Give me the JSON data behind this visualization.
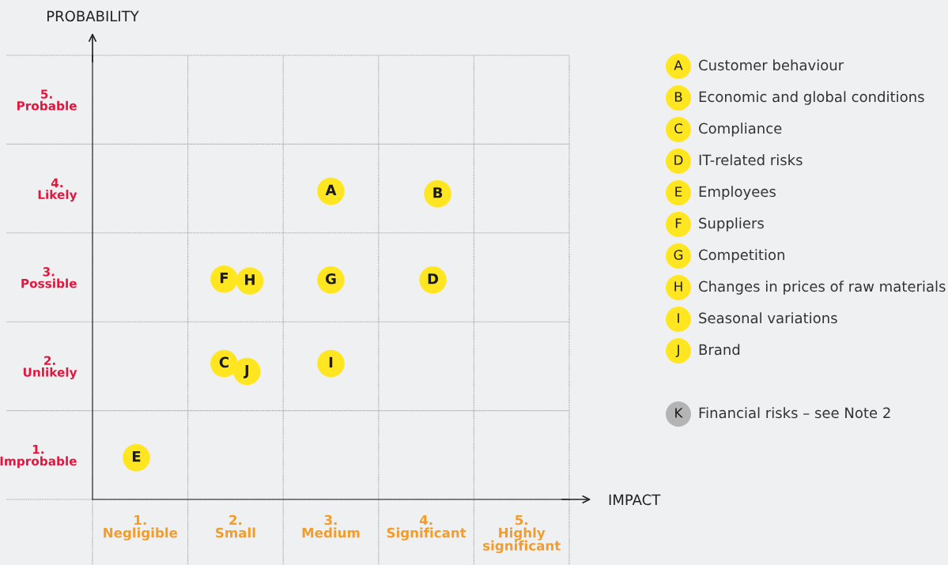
{
  "chart_data": {
    "type": "scatter",
    "xlabel": "IMPACT",
    "ylabel": "PROBABILITY",
    "xlim": [
      0,
      5
    ],
    "ylim": [
      0,
      5
    ],
    "xticks": [
      {
        "value": 0,
        "label": null
      },
      {
        "value": 0.5,
        "label": "1.\nNegligible"
      },
      {
        "value": 1,
        "label": null
      },
      {
        "value": 1.5,
        "label": "2.\nSmall"
      },
      {
        "value": 2,
        "label": null
      },
      {
        "value": 2.5,
        "label": "3.\nMedium"
      },
      {
        "value": 3,
        "label": null
      },
      {
        "value": 3.5,
        "label": "4.\nSignificant"
      },
      {
        "value": 4,
        "label": null
      },
      {
        "value": 4.5,
        "label": "5.\nHighly\nsignificant"
      },
      {
        "value": 5,
        "label": null
      }
    ],
    "yticks": [
      {
        "value": 0,
        "label": null
      },
      {
        "value": 0.5,
        "label": "1.\nImprobable"
      },
      {
        "value": 1,
        "label": null
      },
      {
        "value": 1.5,
        "label": "2.\nUnlikely"
      },
      {
        "value": 2,
        "label": null
      },
      {
        "value": 2.5,
        "label": "3.\nPossible"
      },
      {
        "value": 3,
        "label": null
      },
      {
        "value": 3.5,
        "label": "4.\nLikely"
      },
      {
        "value": 4,
        "label": null
      },
      {
        "value": 4.5,
        "label": "5.\nProbable"
      },
      {
        "value": 5,
        "label": null
      }
    ],
    "grid": true,
    "legend": "right",
    "marker": "circle",
    "series": [
      {
        "name": "Customer behaviour",
        "color": "#ffe620",
        "x": [
          2.5
        ],
        "values": [
          3.47
        ],
        "value_labels": [
          "A"
        ]
      },
      {
        "name": "Economic and global conditions",
        "color": "#ffe620",
        "x": [
          3.62
        ],
        "values": [
          3.44
        ],
        "value_labels": [
          "B"
        ]
      },
      {
        "name": "Compliance",
        "color": "#ffe620",
        "x": [
          1.38
        ],
        "values": [
          1.53
        ],
        "value_labels": [
          "C"
        ]
      },
      {
        "name": "IT-related risks",
        "color": "#ffe620",
        "x": [
          3.57
        ],
        "values": [
          2.47
        ],
        "value_labels": [
          "D"
        ]
      },
      {
        "name": "Employees",
        "color": "#ffe620",
        "x": [
          0.46
        ],
        "values": [
          0.47
        ],
        "value_labels": [
          "E"
        ]
      },
      {
        "name": "Suppliers",
        "color": "#ffe620",
        "x": [
          1.38
        ],
        "values": [
          2.48
        ],
        "value_labels": [
          "F"
        ]
      },
      {
        "name": "Competition",
        "color": "#ffe620",
        "x": [
          2.5
        ],
        "values": [
          2.47
        ],
        "value_labels": [
          "G"
        ]
      },
      {
        "name": "Changes in prices of raw materials",
        "color": "#ffe620",
        "x": [
          1.65
        ],
        "values": [
          2.46
        ],
        "value_labels": [
          "H"
        ]
      },
      {
        "name": "Seasonal variations",
        "color": "#ffe620",
        "x": [
          2.5
        ],
        "values": [
          1.53
        ],
        "value_labels": [
          "I"
        ]
      },
      {
        "name": "Brand",
        "color": "#ffe620",
        "x": [
          1.62
        ],
        "values": [
          1.44
        ],
        "value_labels": [
          "J"
        ]
      },
      {
        "name": "Financial risks – see Note 2",
        "color": "#b4b4b4",
        "x": [
          null
        ],
        "values": [
          null
        ],
        "value_labels": [
          "K"
        ]
      }
    ]
  }
}
